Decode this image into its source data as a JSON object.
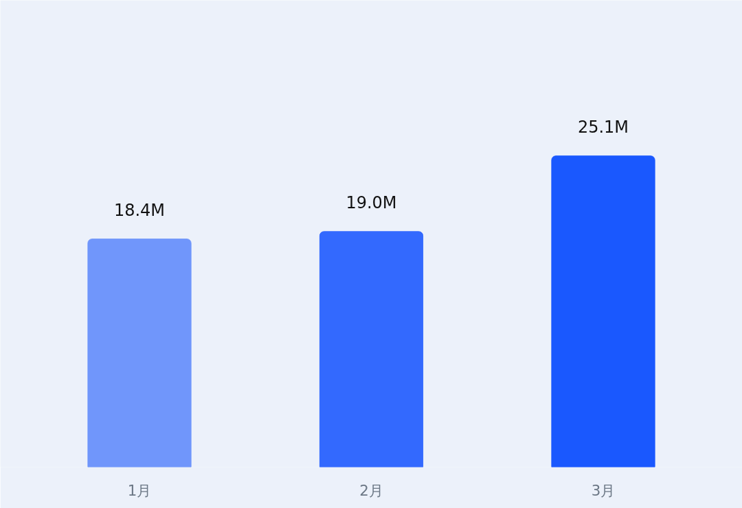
{
  "chart_data": {
    "type": "bar",
    "categories": [
      "1月",
      "2月",
      "3月"
    ],
    "values": [
      18.4,
      19.0,
      25.1
    ],
    "colors": [
      "#7096fb",
      "#3369fe",
      "#1a58fe"
    ],
    "value_labels": [
      "18.4M",
      "19.0M",
      "25.1M"
    ]
  }
}
